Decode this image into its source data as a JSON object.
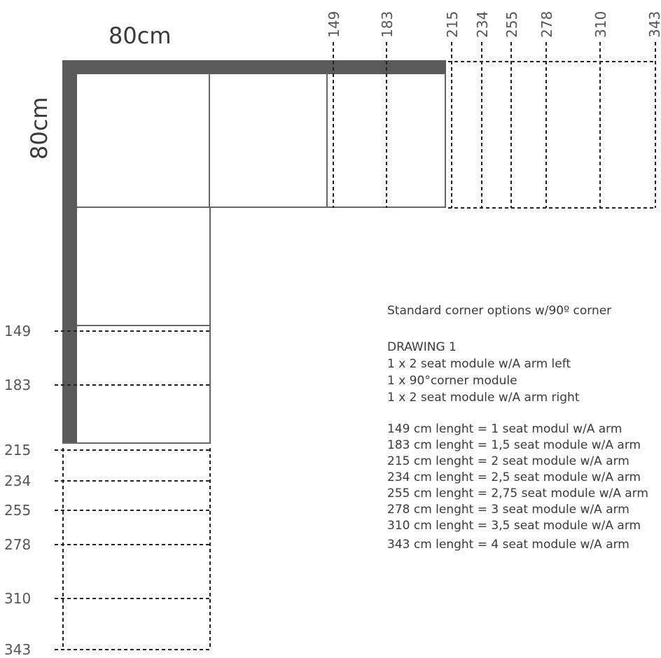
{
  "labels": {
    "top_width": "80cm",
    "side_depth": "80cm"
  },
  "top_ticks": [
    "149",
    "183",
    "215",
    "234",
    "255",
    "278",
    "310",
    "343"
  ],
  "left_ticks": [
    "149",
    "183",
    "215",
    "234",
    "255",
    "278",
    "310",
    "343"
  ],
  "notes": {
    "title": "Standard  corner options w/90º corner",
    "heading": "DRAWING 1",
    "modules": [
      "1 x 2 seat module w/A arm left",
      "1 x 90°corner module",
      "1 x 2 seat module w/A arm right"
    ],
    "lengths": [
      "149 cm lenght = 1 seat modul w/A arm",
      "183 cm lenght = 1,5 seat module w/A arm",
      "215 cm lenght = 2 seat module w/A arm",
      "234 cm lenght = 2,5 seat module w/A arm",
      "255 cm lenght = 2,75 seat module w/A arm",
      "278 cm lenght = 3 seat module w/A arm",
      "310 cm lenght = 3,5 seat module w/A arm",
      "343 cm lenght = 4 seat module w/A arm"
    ]
  },
  "colors": {
    "frame": "#5a5a5a",
    "line": "#666666",
    "dash": "#222222"
  }
}
